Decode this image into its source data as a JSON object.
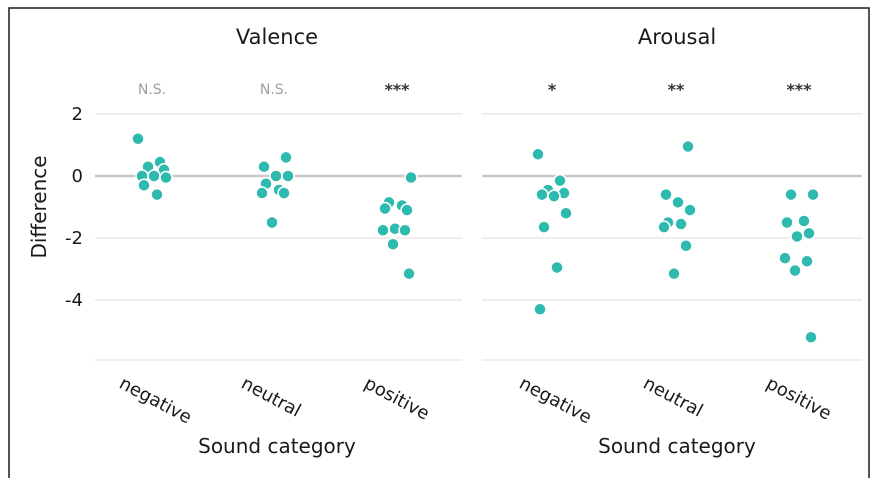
{
  "colors": {
    "point": "#2ebaae",
    "point_outline": "#ffffff",
    "grid": "#dcdcdc",
    "zero_line": "#c8c8c8",
    "border": "#1a1a1a"
  },
  "chart_data": [
    {
      "type": "scatter",
      "title": "Valence",
      "xlabel": "Sound category",
      "ylabel": "Difference",
      "categories": [
        "negative",
        "neutral",
        "positive"
      ],
      "significance": [
        "N.S.",
        "N.S.",
        "***"
      ],
      "ylim": [
        -6,
        2.8
      ],
      "yticks": [
        2,
        0,
        -2,
        -4
      ],
      "grid": true,
      "points": [
        {
          "category": "negative",
          "values": [
            1.2,
            0.45,
            0.3,
            0.2,
            0.0,
            0.0,
            -0.05,
            -0.3,
            -0.6
          ]
        },
        {
          "category": "neutral",
          "values": [
            0.6,
            0.3,
            0.0,
            0.0,
            -0.25,
            -0.45,
            -0.55,
            -0.55,
            -1.5
          ]
        },
        {
          "category": "positive",
          "values": [
            -0.05,
            -0.85,
            -0.95,
            -1.05,
            -1.1,
            -1.7,
            -1.75,
            -1.75,
            -2.2,
            -3.15
          ]
        }
      ]
    },
    {
      "type": "scatter",
      "title": "Arousal",
      "xlabel": "Sound category",
      "ylabel": "",
      "categories": [
        "negative",
        "neutral",
        "positive"
      ],
      "significance": [
        "*",
        "**",
        "***"
      ],
      "ylim": [
        -6,
        2.8
      ],
      "yticks": [
        2,
        0,
        -2,
        -4
      ],
      "grid": true,
      "points": [
        {
          "category": "negative",
          "values": [
            0.7,
            -0.15,
            -0.45,
            -0.55,
            -0.6,
            -0.65,
            -1.2,
            -1.65,
            -2.95,
            -4.3
          ]
        },
        {
          "category": "neutral",
          "values": [
            0.95,
            -0.6,
            -0.85,
            -1.1,
            -1.5,
            -1.55,
            -1.65,
            -2.25,
            -3.15
          ]
        },
        {
          "category": "positive",
          "values": [
            -0.6,
            -0.6,
            -1.45,
            -1.5,
            -1.85,
            -1.95,
            -2.65,
            -2.75,
            -3.05,
            -5.2
          ]
        }
      ]
    }
  ]
}
